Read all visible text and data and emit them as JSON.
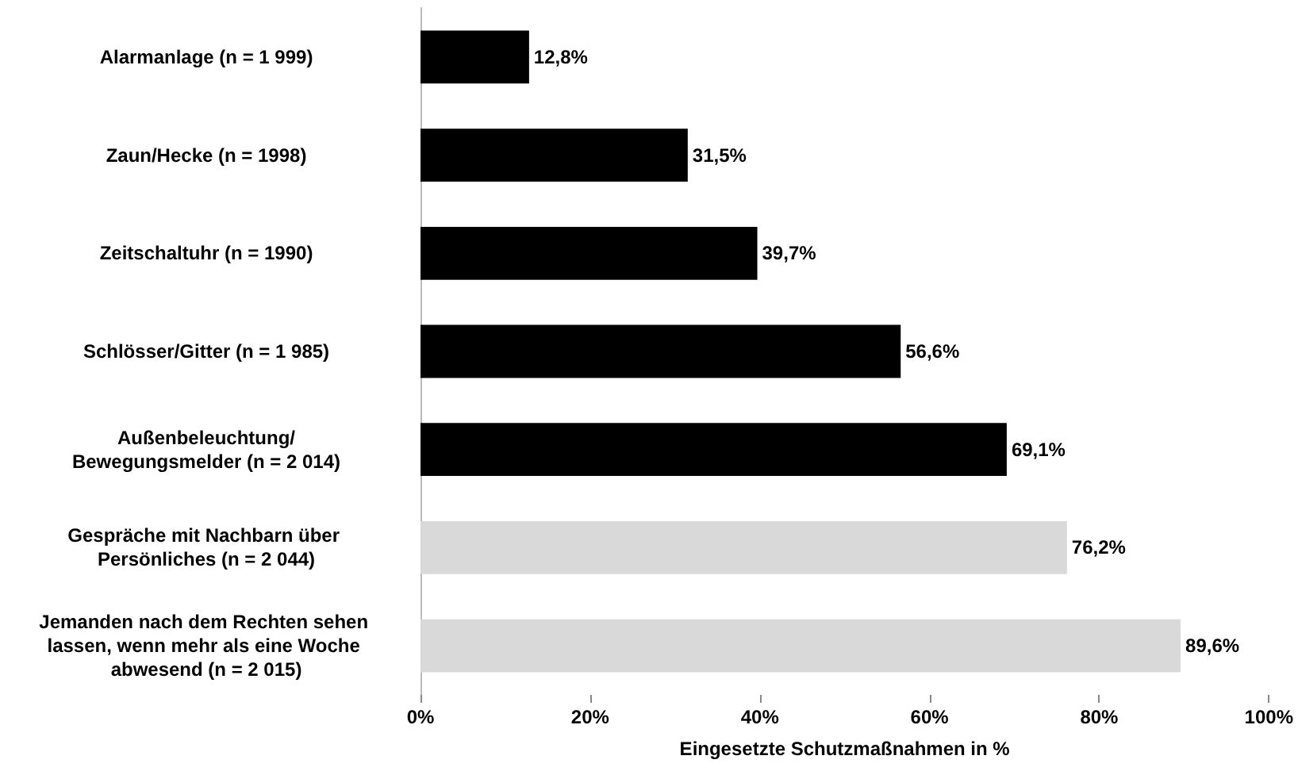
{
  "chart_data": {
    "type": "bar",
    "orientation": "horizontal",
    "xlabel": "Eingesetzte Schutzmaßnahmen in %",
    "categories": [
      "Alarmanlage (n = 1 999)",
      "Zaun/Hecke (n = 1998)",
      "Zeitschaltuhr (n = 1990)",
      "Schlösser/Gitter (n = 1 985)",
      "Außenbeleuchtung/Bewegungsmelder (n = 2 014)",
      "Gespräche mit Nachbarn über Persönliches (n = 2 044)",
      "Jemanden nach dem Rechten sehen lassen, wenn mehr als eine Woche abwesend (n = 2 015)"
    ],
    "values": [
      12.8,
      31.5,
      39.7,
      56.6,
      69.1,
      76.2,
      89.6
    ],
    "colors": [
      "#000000",
      "#000000",
      "#000000",
      "#000000",
      "#000000",
      "#d9d9d9",
      "#d9d9d9"
    ],
    "value_labels": [
      "12,8%",
      "31,5%",
      "39,7%",
      "56,6%",
      "69,1%",
      "76,2%",
      "89,6%"
    ],
    "xlim": [
      0,
      100
    ],
    "xticks": [
      {
        "value": 0,
        "label": "0%"
      },
      {
        "value": 20,
        "label": "20%"
      },
      {
        "value": 40,
        "label": "40%"
      },
      {
        "value": 60,
        "label": "60%"
      },
      {
        "value": 80,
        "label": "80%"
      },
      {
        "value": 100,
        "label": "100%"
      }
    ],
    "grid": false
  }
}
